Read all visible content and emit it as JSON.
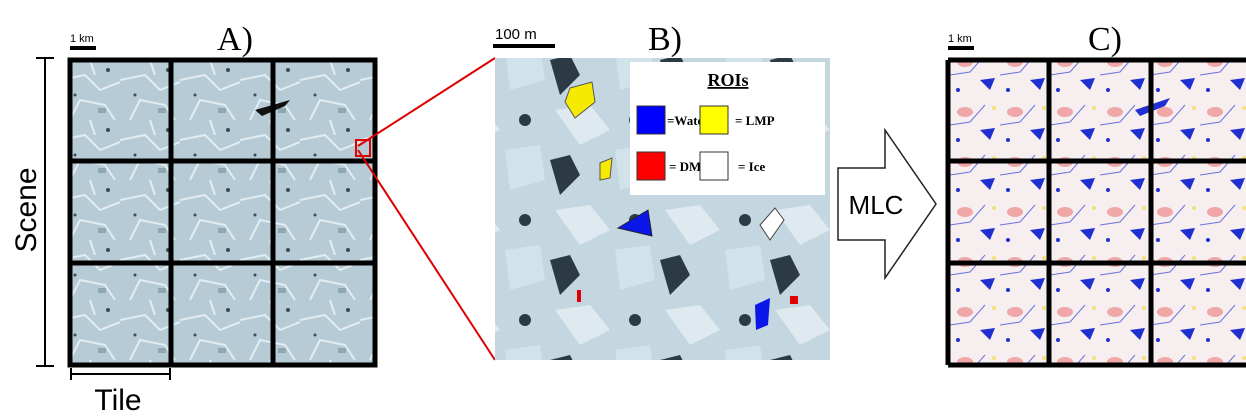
{
  "panel_a": {
    "label": "A)",
    "scale": "1 km",
    "scene": "Scene",
    "tile": "Tile"
  },
  "panel_b": {
    "label": "B)",
    "scale": "100 m",
    "legend": {
      "title": "ROIs",
      "water": "=Water",
      "lmp": "= LMP",
      "dmp": "= DMP",
      "ice": "= Ice"
    }
  },
  "arrow": {
    "label": "MLC"
  },
  "panel_c": {
    "label": "C)",
    "scale": "1 km"
  }
}
